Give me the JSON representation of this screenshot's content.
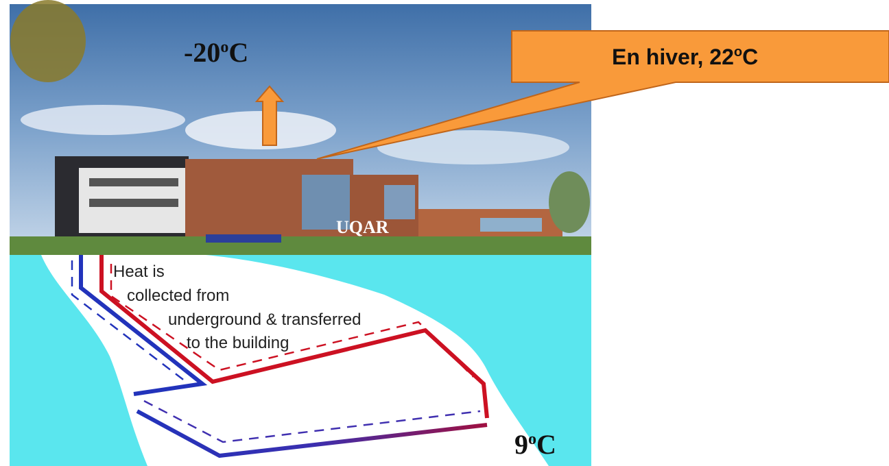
{
  "outside": {
    "number": "-20",
    "degree": "o",
    "unit": "C"
  },
  "callout": {
    "text": "En hiver, 22",
    "degree": "o",
    "unit": "C"
  },
  "sign": "UQAR",
  "diagram": {
    "lines": [
      "Heat is",
      "collected from",
      "underground & transferred",
      "to the building"
    ]
  },
  "ground": {
    "number": "9",
    "degree": "o",
    "unit": "C"
  }
}
